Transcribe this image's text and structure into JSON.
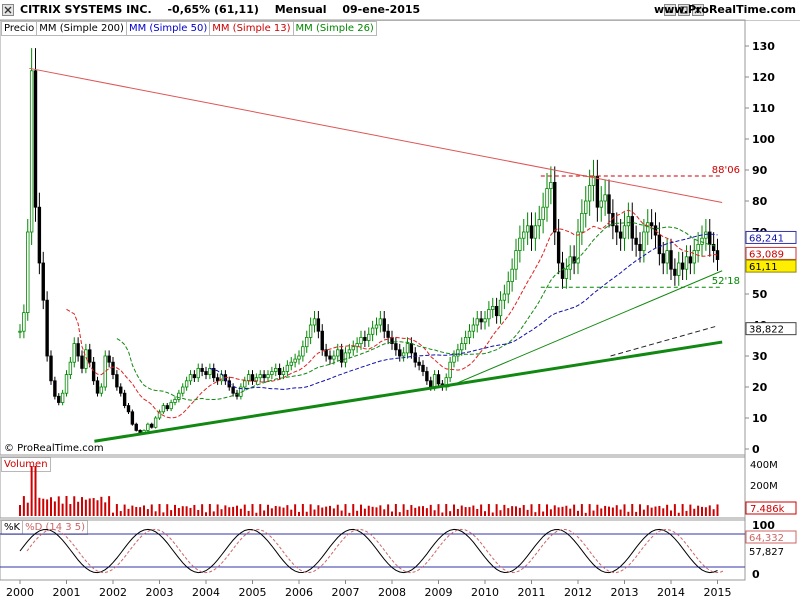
{
  "window": {
    "title_left": "CITRIX SYSTEMS INC.",
    "change": "-0,65% (61,11)",
    "period": "Mensual",
    "date": "09-ene-2015",
    "site": "www.ProRealTime.com"
  },
  "price_panel": {
    "legend": [
      "Precio",
      "MM (Simple 200)",
      "MM (Simple 50)",
      "MM (Simple 13)",
      "MM (Simple 26)"
    ],
    "legend_colors": [
      "#000000",
      "#000000",
      "#0000cc",
      "#cc0000",
      "#008800"
    ],
    "watermark": "© ProRealTime.com"
  },
  "volume_panel": {
    "label": "Volumen",
    "ticks": [
      "400M",
      "200M"
    ],
    "last_value": "7.486k"
  },
  "stoch_panel": {
    "label_k": "%K",
    "label_d": "%D (14 3 5)",
    "ticks": [
      "100",
      "0"
    ],
    "last_k": "64,332",
    "last_d": "57,827"
  },
  "colors": {
    "up": "#008800",
    "down": "#000000",
    "sma13": "#dd2222",
    "sma26": "#118811",
    "sma50": "#1111aa",
    "resistance": "#dd5555",
    "support": "#118811",
    "volume": "#cc0000",
    "label_box": "#ffee00"
  },
  "chart_data": {
    "type": "candlestick",
    "title": "CITRIX SYSTEMS INC.",
    "x_ticks": [
      "2000",
      "2001",
      "2002",
      "2003",
      "2004",
      "2005",
      "2006",
      "2007",
      "2008",
      "2009",
      "2010",
      "2011",
      "2012",
      "2013",
      "2014",
      "2015"
    ],
    "y_ticks": [
      0,
      10,
      20,
      30,
      40,
      50,
      60,
      70,
      80,
      90,
      100,
      110,
      120,
      130
    ],
    "ylim": [
      0,
      133
    ],
    "xlim": [
      1999.5,
      2015.1
    ],
    "last_price": "61,11",
    "sma50_value": "68,241",
    "sma26_value": "63,089",
    "lower_label": "38,822",
    "annotations": [
      {
        "text": "88'06",
        "value": 88.06,
        "from_year": 2011.2,
        "to_year": 2015.05,
        "color": "#cc0000"
      },
      {
        "text": "52'18",
        "value": 52.18,
        "from_year": 2011.2,
        "to_year": 2015.05,
        "color": "#008800"
      }
    ],
    "trendlines": [
      {
        "name": "resistance",
        "p1": [
          2000.2,
          122.8
        ],
        "p2": [
          2015.1,
          79.5
        ],
        "width": 1
      },
      {
        "name": "support-steep",
        "p1": [
          2009.2,
          20.0
        ],
        "p2": [
          2015.1,
          57.5
        ],
        "width": 1
      },
      {
        "name": "support-long",
        "p1": [
          2001.6,
          2.5
        ],
        "p2": [
          2015.1,
          34.5
        ],
        "width": 3
      },
      {
        "name": "projection",
        "p1": [
          2012.7,
          30.0
        ],
        "p2": [
          2014.95,
          39.5
        ],
        "width": 1,
        "dashed": true
      }
    ],
    "monthly_closes": [
      {
        "year": 2000,
        "closes": [
          38,
          44,
          70,
          122,
          78,
          60,
          48,
          30,
          22,
          17,
          15,
          18
        ]
      },
      {
        "year": 2001,
        "closes": [
          24,
          28,
          34,
          30,
          26,
          32,
          28,
          22,
          18,
          20,
          30,
          28
        ]
      },
      {
        "year": 2002,
        "closes": [
          24,
          20,
          18,
          14,
          12,
          8,
          6,
          5,
          6,
          8,
          7,
          10
        ]
      },
      {
        "year": 2003,
        "closes": [
          12,
          14,
          13,
          15,
          16,
          18,
          20,
          22,
          24,
          23,
          26,
          25
        ]
      },
      {
        "year": 2004,
        "closes": [
          24,
          26,
          23,
          22,
          24,
          22,
          20,
          18,
          17,
          20,
          22,
          24
        ]
      },
      {
        "year": 2005,
        "closes": [
          22,
          23,
          24,
          23,
          24,
          25,
          26,
          24,
          25,
          27,
          28,
          29
        ]
      },
      {
        "year": 2006,
        "closes": [
          30,
          33,
          36,
          40,
          42,
          38,
          32,
          30,
          29,
          30,
          32,
          28
        ]
      },
      {
        "year": 2007,
        "closes": [
          31,
          32,
          33,
          34,
          36,
          35,
          37,
          39,
          40,
          42,
          38,
          36
        ]
      },
      {
        "year": 2008,
        "closes": [
          34,
          32,
          30,
          31,
          34,
          31,
          28,
          27,
          25,
          22,
          20,
          24
        ]
      },
      {
        "year": 2009,
        "closes": [
          21,
          20,
          23,
          28,
          30,
          32,
          34,
          36,
          38,
          40,
          42,
          41
        ]
      },
      {
        "year": 2010,
        "closes": [
          42,
          45,
          46,
          43,
          48,
          50,
          54,
          58,
          64,
          68,
          70,
          72
        ]
      },
      {
        "year": 2011,
        "closes": [
          68,
          72,
          74,
          78,
          84,
          86,
          70,
          60,
          55,
          58,
          62,
          60
        ]
      },
      {
        "year": 2012,
        "closes": [
          70,
          76,
          80,
          85,
          88,
          78,
          80,
          82,
          76,
          72,
          70,
          68
        ]
      },
      {
        "year": 2013,
        "closes": [
          72,
          75,
          68,
          66,
          64,
          70,
          73,
          72,
          69,
          63,
          60,
          64
        ]
      },
      {
        "year": 2014,
        "closes": [
          58,
          56,
          60,
          58,
          62,
          60,
          64,
          66,
          68,
          70,
          66,
          64
        ]
      },
      {
        "year": 2015,
        "closes": [
          61.11
        ]
      }
    ]
  }
}
